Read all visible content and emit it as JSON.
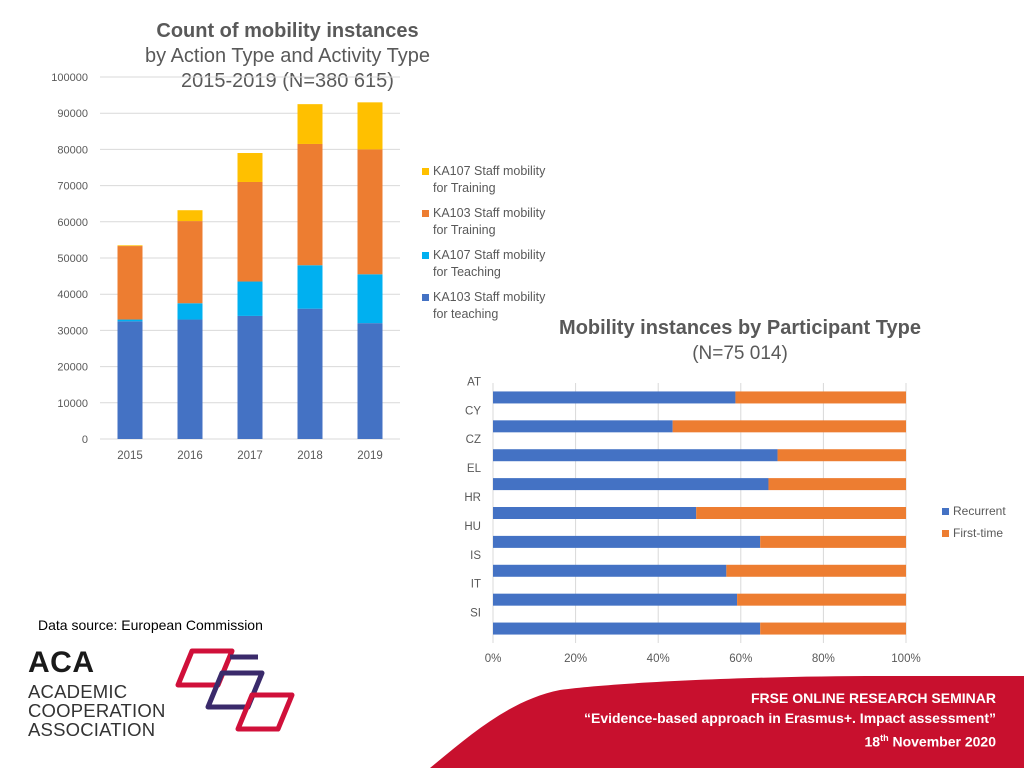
{
  "chart_data": [
    {
      "type": "bar",
      "stacked": true,
      "title": "Count of mobility instances",
      "subtitle": "by Action Type and Activity Type",
      "subtitle2": "2015-2019 (N=380 615)",
      "categories": [
        "2015",
        "2016",
        "2017",
        "2018",
        "2019"
      ],
      "y_ticks": [
        "0",
        "10000",
        "20000",
        "30000",
        "40000",
        "50000",
        "60000",
        "70000",
        "80000",
        "90000",
        "100000"
      ],
      "ylim": [
        0,
        100000
      ],
      "grid": true,
      "legend_position": "right",
      "series": [
        {
          "name": "KA103 Staff mobility for teaching",
          "legend_line1": "KA103 Staff mobility",
          "legend_line2": "for teaching",
          "color": "#4472C4",
          "values": [
            32500,
            33000,
            34000,
            36000,
            32000
          ]
        },
        {
          "name": "KA107 Staff mobility for Teaching",
          "legend_line1": "KA107 Staff mobility",
          "legend_line2": "for Teaching",
          "color": "#00B0F0",
          "values": [
            500,
            4500,
            9500,
            12000,
            13500
          ]
        },
        {
          "name": "KA103 Staff mobility for Training",
          "legend_line1": "KA103 Staff mobility",
          "legend_line2": "for Training",
          "color": "#ED7D31",
          "values": [
            20300,
            22700,
            27500,
            33500,
            34500
          ]
        },
        {
          "name": "KA107 Staff mobility for Training",
          "legend_line1": "KA107 Staff mobility",
          "legend_line2": "for Training",
          "color": "#FFC000",
          "values": [
            200,
            3000,
            8000,
            11000,
            13000
          ]
        }
      ]
    },
    {
      "type": "bar",
      "orientation": "horizontal",
      "stacked_percent": true,
      "title": "Mobility instances by Participant Type",
      "subtitle": "(N=75 014)",
      "categories": [
        "AT",
        "CY",
        "CZ",
        "EL",
        "HR",
        "HU",
        "IS",
        "IT",
        "SI"
      ],
      "x_ticks": [
        "0%",
        "20%",
        "40%",
        "60%",
        "80%",
        "100%"
      ],
      "xlim": [
        0,
        100
      ],
      "grid": true,
      "legend_position": "right",
      "series": [
        {
          "name": "Recurrent",
          "color": "#4472C4",
          "values": [
            58.7,
            43.5,
            68.9,
            66.7,
            49.2,
            64.7,
            56.5,
            59.1,
            64.7
          ]
        },
        {
          "name": "First-time",
          "color": "#ED7D31",
          "values": [
            41.3,
            56.5,
            31.1,
            33.3,
            50.8,
            35.3,
            43.5,
            40.9,
            35.3
          ]
        }
      ]
    }
  ],
  "source": "Data source: European Commission",
  "logo": {
    "abbr": "ACA",
    "line1": "ACADEMIC",
    "line2": "COOPERATION",
    "line3": "ASSOCIATION"
  },
  "footer": {
    "line1": "FRSE ONLINE RESEARCH SEMINAR",
    "line2": "“Evidence-based approach in Erasmus+. Impact assessment”",
    "line3_day": "18",
    "line3_sup": "th",
    "line3_rest": " November 2020"
  },
  "colors": {
    "banner": "#C8102E",
    "logo_red": "#D0103A",
    "logo_purple": "#3A2A6B"
  }
}
